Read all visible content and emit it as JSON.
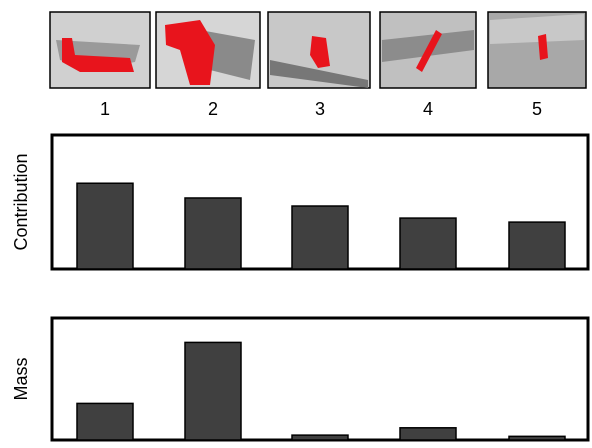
{
  "chart_data": [
    {
      "type": "bar",
      "y_label": "Contribution",
      "categories": [
        "1",
        "2",
        "3",
        "4",
        "5"
      ],
      "values": [
        64,
        53,
        47,
        38,
        35
      ],
      "color": "#404040",
      "ylim": [
        0,
        100
      ]
    },
    {
      "type": "bar",
      "y_label": "Mass",
      "values": [
        30,
        80,
        4,
        10,
        3
      ],
      "color": "#404040",
      "ylim": [
        0,
        100
      ]
    }
  ]
}
